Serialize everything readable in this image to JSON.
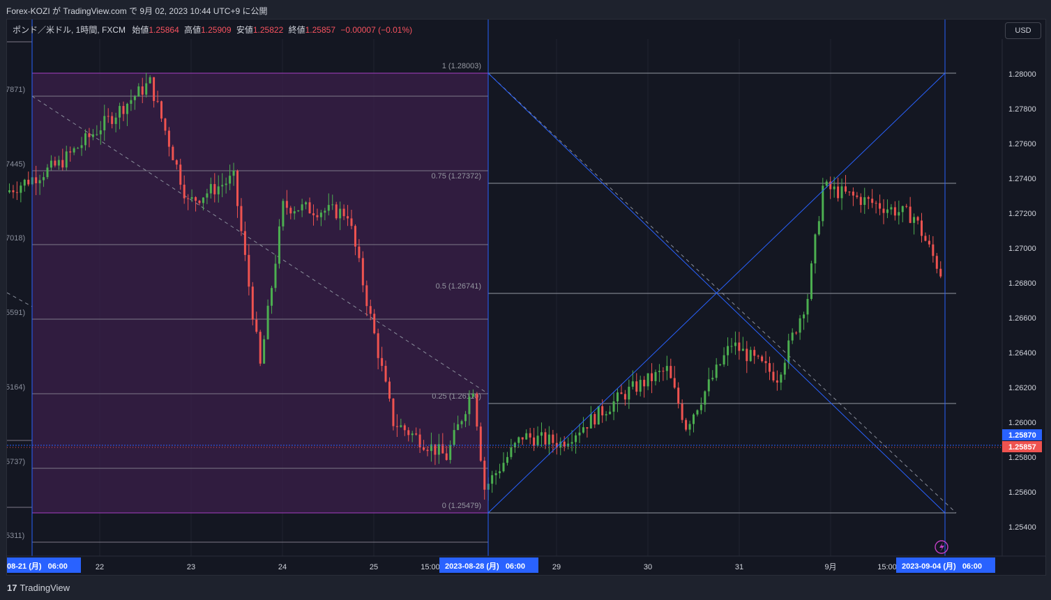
{
  "publish_caption": "Forex-KOZI が TradingView.com で 9月 02, 2023 10:44 UTC+9 に公開",
  "legend": {
    "symbol": "ポンド／米ドル, 1時間, FXCM",
    "open_label": "始値",
    "open": "1.25864",
    "high_label": "高値",
    "high": "1.25909",
    "low_label": "安値",
    "low": "1.25822",
    "close_label": "終値",
    "close": "1.25857",
    "change": "−0.00007 (−0.01%)"
  },
  "currency_button": "USD",
  "price_axis": {
    "ticks": [
      "1.28000",
      "1.27800",
      "1.27600",
      "1.27400",
      "1.27200",
      "1.27000",
      "1.26800",
      "1.26600",
      "1.26400",
      "1.26200",
      "1.26000",
      "1.25800",
      "1.25600",
      "1.25400"
    ],
    "badge_last": "1.25870",
    "badge_close": "1.25857"
  },
  "time_axis": {
    "labels": [
      "22",
      "23",
      "24",
      "25",
      "15:00",
      "29",
      "30",
      "31",
      "9月",
      "15:00"
    ],
    "highlight_left": "08-21 (月)   06:00",
    "highlight_mid": "2023-08-28 (月)   06:00",
    "highlight_right": "2023-09-04 (月)   06:00"
  },
  "fib_right": [
    {
      "label": "1 (1.28003)"
    },
    {
      "label": "0.75 (1.27372)"
    },
    {
      "label": "0.5 (1.26741)"
    },
    {
      "label": "0.25 (1.26110)"
    },
    {
      "label": "0 (1.25479)"
    }
  ],
  "fib_left_partial": [
    "7871)",
    "7445)",
    "7018)",
    "5591)",
    "5164)",
    "5737)",
    "5311)"
  ],
  "footer": {
    "brand": "TradingView",
    "brand_mark": "17"
  },
  "colors": {
    "up": "#26a69a",
    "up_body": "#4caf50",
    "down": "#ef5350",
    "accent": "#2962ff",
    "fib_zone": "#3a1f4a"
  },
  "chart_data": {
    "type": "candlestick",
    "symbol": "GBP/USD",
    "interval": "1h",
    "ylim": [
      1.253,
      1.282
    ],
    "segments": [
      {
        "from": 1.2732,
        "to": 1.2748,
        "n": 14
      },
      {
        "from": 1.2748,
        "to": 1.2795,
        "n": 24
      },
      {
        "from": 1.2795,
        "to": 1.2726,
        "n": 10
      },
      {
        "from": 1.2726,
        "to": 1.274,
        "n": 12
      },
      {
        "from": 1.274,
        "to": 1.2632,
        "n": 7
      },
      {
        "from": 1.2632,
        "to": 1.2724,
        "n": 6
      },
      {
        "from": 1.2724,
        "to": 1.272,
        "n": 17
      },
      {
        "from": 1.272,
        "to": 1.26,
        "n": 12
      },
      {
        "from": 1.26,
        "to": 1.258,
        "n": 14
      },
      {
        "from": 1.258,
        "to": 1.262,
        "n": 7
      },
      {
        "from": 1.262,
        "to": 1.2562,
        "n": 3
      },
      {
        "from": 1.2562,
        "to": 1.2592,
        "n": 10
      },
      {
        "from": 1.2592,
        "to": 1.2588,
        "n": 10
      },
      {
        "from": 1.2588,
        "to": 1.2618,
        "n": 18
      },
      {
        "from": 1.2618,
        "to": 1.263,
        "n": 10
      },
      {
        "from": 1.263,
        "to": 1.2598,
        "n": 5
      },
      {
        "from": 1.2598,
        "to": 1.2645,
        "n": 12
      },
      {
        "from": 1.2645,
        "to": 1.2626,
        "n": 12
      },
      {
        "from": 1.2626,
        "to": 1.2672,
        "n": 8
      },
      {
        "from": 1.2672,
        "to": 1.2735,
        "n": 4
      },
      {
        "from": 1.2735,
        "to": 1.2718,
        "n": 24
      },
      {
        "from": 1.2718,
        "to": 1.2672,
        "n": 10
      },
      {
        "from": 1.2672,
        "to": 1.2666,
        "n": 24
      },
      {
        "from": 1.2666,
        "to": 1.2685,
        "n": 8
      },
      {
        "from": 1.2685,
        "to": 1.2592,
        "n": 3
      },
      {
        "from": 1.2592,
        "to": 1.2586,
        "n": 7
      }
    ]
  }
}
